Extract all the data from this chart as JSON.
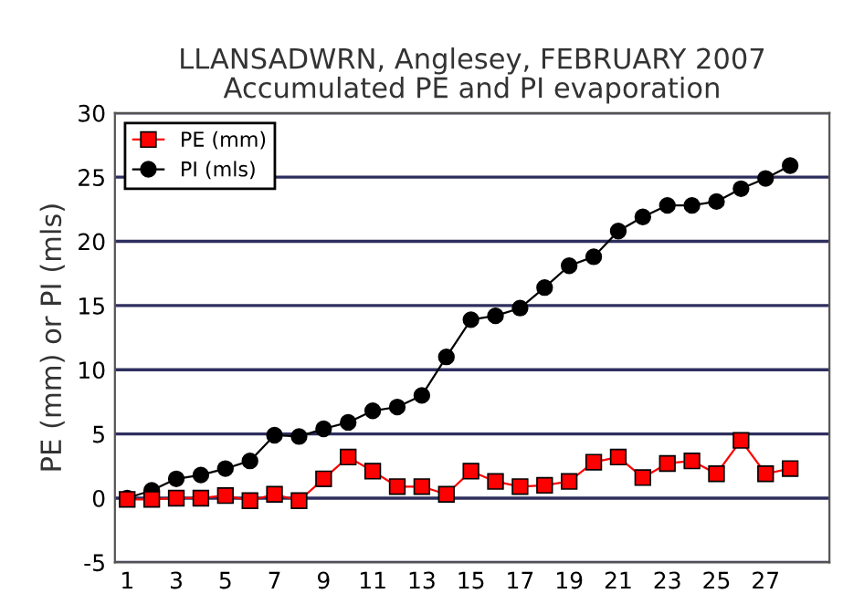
{
  "chart_data": {
    "type": "line",
    "title": "LLANSADWRN, Anglesey, FEBRUARY 2007\nAccumulated PE and PI evaporation",
    "ylabel": "PE (mm) or PI (mls)",
    "x": [
      1,
      2,
      3,
      4,
      5,
      6,
      7,
      8,
      9,
      10,
      11,
      12,
      13,
      14,
      15,
      16,
      17,
      18,
      19,
      20,
      21,
      22,
      23,
      24,
      25,
      26,
      27,
      28
    ],
    "series": [
      {
        "name": "PE (mm)",
        "color": "#ff0000",
        "marker": "square",
        "values": [
          -0.1,
          -0.1,
          0,
          0,
          0.2,
          -0.2,
          0.3,
          -0.2,
          1.5,
          3.2,
          2.1,
          0.9,
          0.9,
          0.3,
          2.1,
          1.3,
          0.9,
          1.0,
          1.3,
          2.8,
          3.2,
          1.6,
          2.7,
          2.9,
          1.9,
          4.5,
          1.9,
          2.3
        ]
      },
      {
        "name": "PI (mls)",
        "color": "#000000",
        "marker": "circle",
        "values": [
          0,
          0.6,
          1.5,
          1.8,
          2.3,
          2.9,
          4.9,
          4.8,
          5.4,
          5.9,
          6.8,
          7.1,
          8.0,
          11.0,
          13.9,
          14.2,
          14.8,
          16.4,
          18.1,
          18.8,
          20.8,
          21.9,
          22.8,
          22.8,
          23.1,
          24.1,
          24.9,
          25.9
        ]
      }
    ],
    "xlim": [
      0.5,
      29.6
    ],
    "xticks": [
      1,
      3,
      5,
      7,
      9,
      11,
      13,
      15,
      17,
      19,
      21,
      23,
      25,
      27
    ],
    "ylim": [
      -5,
      30
    ],
    "yticks": [
      -5,
      0,
      5,
      10,
      15,
      20,
      25,
      30
    ],
    "grid": "y",
    "legend": "top left"
  }
}
